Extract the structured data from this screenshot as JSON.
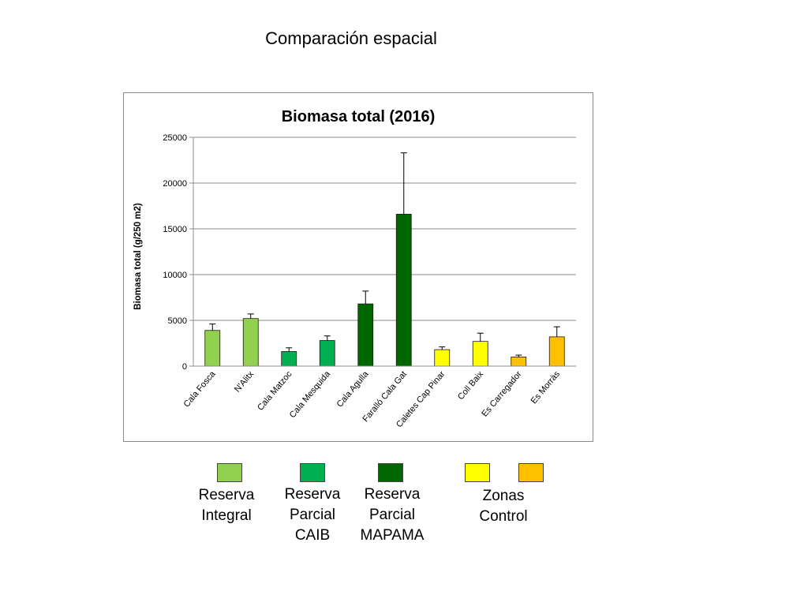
{
  "slide": {
    "title": "Comparación espacial"
  },
  "chart_data": {
    "type": "bar",
    "title": "Biomasa total (2016)",
    "xlabel": "",
    "ylabel": "Biomasa total (g/250 m2)",
    "ylim": [
      0,
      25000
    ],
    "yticks": [
      0,
      5000,
      10000,
      15000,
      20000,
      25000
    ],
    "grid": true,
    "categories": [
      "Cala Fosca",
      "N'Alitx",
      "Cala Matzoc",
      "Cala Mesquida",
      "Cala Agulla",
      "Faralló Cala Gat",
      "Caletes Cap Pinar",
      "Coll Baix",
      "Es Carregador",
      "Es Morràs"
    ],
    "values": [
      3900,
      5200,
      1600,
      2800,
      6800,
      16600,
      1800,
      2700,
      1000,
      3200
    ],
    "errors": [
      700,
      500,
      400,
      500,
      1400,
      6700,
      300,
      900,
      200,
      1100
    ],
    "colors": [
      "#92d050",
      "#92d050",
      "#00b050",
      "#00b050",
      "#006600",
      "#006600",
      "#ffff00",
      "#ffff00",
      "#ffc000",
      "#ffc000"
    ],
    "legend": [
      {
        "label": "Reserva\nIntegral",
        "colors": [
          "#92d050"
        ]
      },
      {
        "label": "Reserva\nParcial\nCAIB",
        "colors": [
          "#00b050"
        ]
      },
      {
        "label": "Reserva\nParcial\nMAPAMA",
        "colors": [
          "#006600"
        ]
      },
      {
        "label": "Zonas\nControl",
        "colors": [
          "#ffff00",
          "#ffc000"
        ]
      }
    ]
  }
}
